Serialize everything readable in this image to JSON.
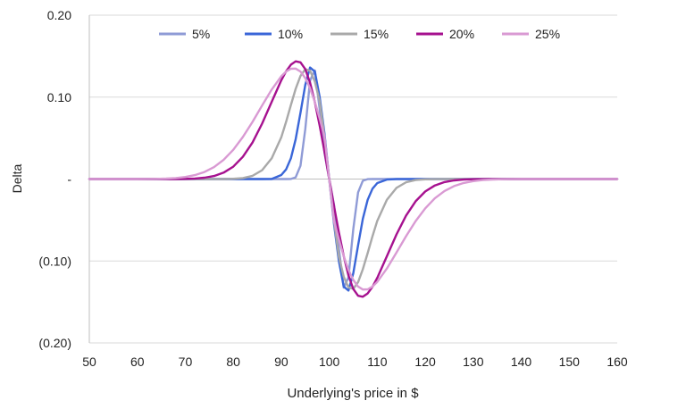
{
  "chart_data": {
    "type": "line",
    "title": "",
    "xlabel": "Underlying's price in $",
    "ylabel": "Delta",
    "xlim": [
      50,
      160
    ],
    "ylim": [
      -0.2,
      0.2
    ],
    "x_ticks": [
      50,
      60,
      70,
      80,
      90,
      100,
      110,
      120,
      130,
      140,
      150,
      160
    ],
    "x_tick_labels": [
      "50",
      "60",
      "70",
      "80",
      "90",
      "100",
      "110",
      "120",
      "130",
      "140",
      "150",
      "160"
    ],
    "y_ticks": [
      0.2,
      0.1,
      0,
      -0.1,
      -0.2
    ],
    "y_tick_labels": [
      "0.20",
      "0.10",
      "-",
      "(0.10)",
      "(0.20)"
    ],
    "grid": "horizontal",
    "legend_position": "top",
    "x": [
      50,
      52,
      54,
      56,
      58,
      60,
      62,
      64,
      66,
      68,
      70,
      72,
      74,
      76,
      78,
      80,
      82,
      84,
      86,
      88,
      90,
      91,
      92,
      93,
      94,
      95,
      96,
      97,
      98,
      99,
      100,
      101,
      102,
      103,
      104,
      105,
      106,
      107,
      108,
      109,
      110,
      112,
      114,
      116,
      118,
      120,
      122,
      124,
      126,
      128,
      130,
      132,
      134,
      136,
      138,
      140,
      142,
      144,
      146,
      148,
      150,
      152,
      154,
      156,
      158,
      160
    ],
    "series": [
      {
        "name": "5%",
        "color": "#8f9bd6",
        "values": [
          0,
          0,
          0,
          0,
          0,
          0,
          0,
          0,
          0,
          0,
          0,
          0,
          0,
          0,
          0,
          0,
          0,
          0,
          0,
          0,
          0,
          0,
          0.0001,
          0.0021,
          0.0162,
          0.0611,
          0.1202,
          0.1325,
          0.0851,
          0.0319,
          0,
          -0.0319,
          -0.0851,
          -0.1325,
          -0.1202,
          -0.0611,
          -0.0162,
          -0.0021,
          -0.0001,
          0,
          0,
          0,
          0,
          0,
          0,
          0,
          0,
          0,
          0,
          0,
          0,
          0,
          0,
          0,
          0,
          0,
          0,
          0,
          0,
          0,
          0,
          0,
          0,
          0,
          0,
          0
        ]
      },
      {
        "name": "10%",
        "color": "#3a66d8",
        "values": [
          0,
          0,
          0,
          0,
          0,
          0,
          0,
          0,
          0,
          0,
          0,
          0,
          0,
          0,
          0,
          0,
          0,
          0,
          0,
          0.0001,
          0.0049,
          0.0118,
          0.0254,
          0.0486,
          0.0809,
          0.1151,
          0.1361,
          0.1311,
          0.1001,
          0.0554,
          0,
          -0.0554,
          -0.1001,
          -0.1311,
          -0.1361,
          -0.1151,
          -0.0809,
          -0.0486,
          -0.0254,
          -0.0118,
          -0.0049,
          -0.0006,
          0,
          0,
          0,
          0,
          0,
          0,
          0,
          0,
          0,
          0,
          0,
          0,
          0,
          0,
          0,
          0,
          0,
          0,
          0,
          0,
          0,
          0,
          0,
          0
        ]
      },
      {
        "name": "15%",
        "color": "#a9a9a9",
        "values": [
          0,
          0,
          0,
          0,
          0,
          0,
          0,
          0,
          0,
          0,
          0,
          0,
          0,
          0,
          0,
          0.0003,
          0.0012,
          0.0039,
          0.0108,
          0.0254,
          0.0509,
          0.0699,
          0.0905,
          0.1101,
          0.1258,
          0.1341,
          0.1323,
          0.1191,
          0.0947,
          0.0515,
          0,
          -0.0515,
          -0.0947,
          -0.1191,
          -0.1323,
          -0.1341,
          -0.1258,
          -0.1101,
          -0.0905,
          -0.0699,
          -0.0509,
          -0.0254,
          -0.0108,
          -0.0039,
          -0.0012,
          -0.0003,
          -0.0001,
          0,
          0,
          0,
          0,
          0,
          0,
          0,
          0,
          0,
          0,
          0,
          0,
          0,
          0,
          0,
          0,
          0,
          0,
          0
        ]
      },
      {
        "name": "20%",
        "color": "#a6118f",
        "values": [
          0,
          0,
          0,
          0,
          0,
          0,
          0,
          0,
          0,
          0,
          0.0002,
          0.0006,
          0.0016,
          0.0037,
          0.0078,
          0.0151,
          0.0271,
          0.0446,
          0.0676,
          0.0943,
          0.1205,
          0.1315,
          0.1396,
          0.1437,
          0.1425,
          0.1342,
          0.1176,
          0.0938,
          0.0652,
          0.0333,
          0,
          -0.0333,
          -0.0652,
          -0.0938,
          -0.1176,
          -0.1342,
          -0.1425,
          -0.1437,
          -0.1396,
          -0.1315,
          -0.1205,
          -0.0943,
          -0.0676,
          -0.0446,
          -0.0271,
          -0.0151,
          -0.0078,
          -0.0037,
          -0.0016,
          -0.0006,
          -0.0002,
          -0.0001,
          0,
          0,
          0,
          0,
          0,
          0,
          0,
          0,
          0,
          0,
          0,
          0,
          0,
          0
        ]
      },
      {
        "name": "25%",
        "color": "#d99ad3",
        "values": [
          0,
          0,
          0,
          0,
          0,
          0,
          0.0001,
          0.0002,
          0.0005,
          0.0012,
          0.0025,
          0.0048,
          0.0086,
          0.0146,
          0.0235,
          0.0357,
          0.0513,
          0.0698,
          0.0897,
          0.1092,
          0.1254,
          0.1312,
          0.1346,
          0.1348,
          0.1312,
          0.1232,
          0.1108,
          0.0941,
          0.074,
          0.0517,
          0,
          -0.0517,
          -0.074,
          -0.0941,
          -0.1108,
          -0.1232,
          -0.1312,
          -0.1348,
          -0.1346,
          -0.1312,
          -0.1254,
          -0.1092,
          -0.0897,
          -0.0698,
          -0.0513,
          -0.0357,
          -0.0235,
          -0.0146,
          -0.0086,
          -0.0048,
          -0.0025,
          -0.0012,
          -0.0005,
          -0.0002,
          -0.0001,
          0,
          0,
          0,
          0,
          0,
          0,
          0,
          0,
          0,
          0,
          0
        ]
      }
    ]
  }
}
